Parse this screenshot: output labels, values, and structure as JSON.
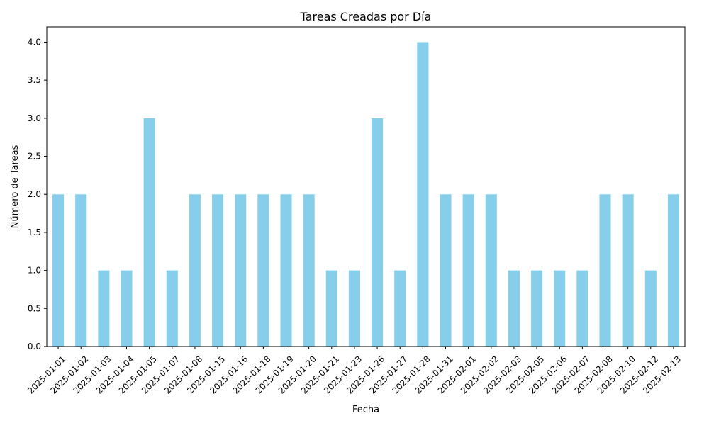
{
  "colors": {
    "bar": "#87ceeb",
    "axis": "#000000",
    "background": "#ffffff"
  },
  "chart_data": {
    "type": "bar",
    "title": "Tareas Creadas por Día",
    "xlabel": "Fecha",
    "ylabel": "Número de Tareas",
    "ylim": [
      0,
      4.2
    ],
    "yticks": [
      "0.0",
      "0.5",
      "1.0",
      "1.5",
      "2.0",
      "2.5",
      "3.0",
      "3.5",
      "4.0"
    ],
    "grid": false,
    "legend": "none",
    "categories": [
      "2025-01-01",
      "2025-01-02",
      "2025-01-03",
      "2025-01-04",
      "2025-01-05",
      "2025-01-07",
      "2025-01-08",
      "2025-01-15",
      "2025-01-16",
      "2025-01-18",
      "2025-01-19",
      "2025-01-20",
      "2025-01-21",
      "2025-01-23",
      "2025-01-26",
      "2025-01-27",
      "2025-01-28",
      "2025-01-31",
      "2025-02-01",
      "2025-02-02",
      "2025-02-03",
      "2025-02-05",
      "2025-02-06",
      "2025-02-07",
      "2025-02-08",
      "2025-02-10",
      "2025-02-12",
      "2025-02-13"
    ],
    "values": [
      2,
      2,
      1,
      1,
      3,
      1,
      2,
      2,
      2,
      2,
      2,
      2,
      1,
      1,
      3,
      1,
      4,
      2,
      2,
      2,
      1,
      1,
      1,
      1,
      2,
      2,
      1,
      2
    ]
  }
}
